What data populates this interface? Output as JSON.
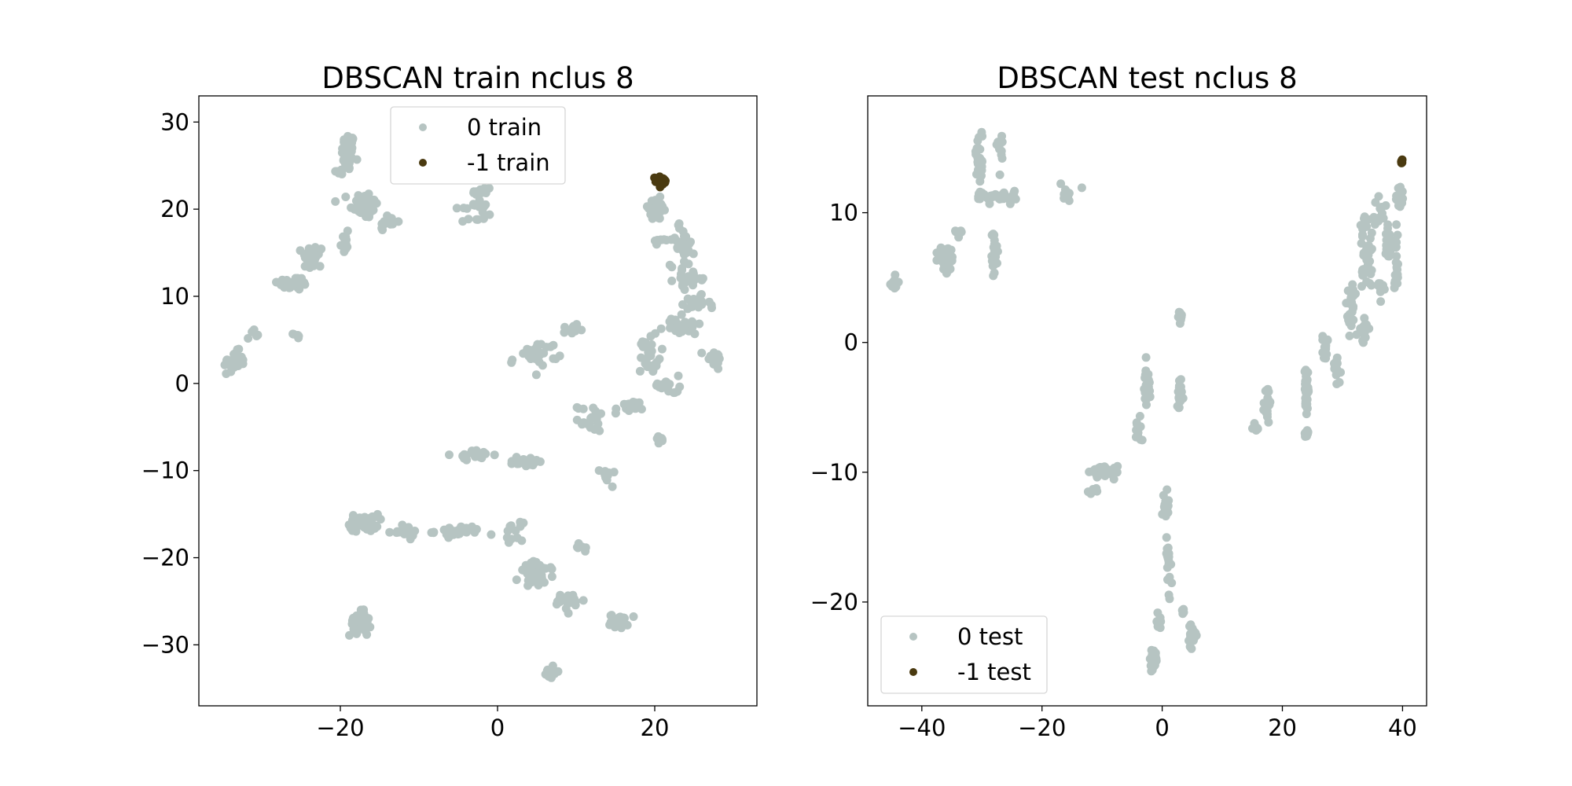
{
  "chart_data": [
    {
      "type": "scatter",
      "title": "DBSCAN train nclus 8",
      "xlabel": "",
      "ylabel": "",
      "xlim": [
        -38,
        33
      ],
      "ylim": [
        -37,
        33
      ],
      "xticks": [
        -20,
        0,
        20
      ],
      "yticks": [
        30,
        20,
        10,
        0,
        -10,
        -20,
        -30
      ],
      "grid": false,
      "legend_position": "upper-center",
      "series": [
        {
          "name": "0 train",
          "color": "#b6c4c2",
          "clusters": [
            {
              "cx": -19,
              "cy": 26.5,
              "sx": 0.8,
              "sy": 2.2,
              "n": 60
            },
            {
              "cx": -17,
              "cy": 20.5,
              "sx": 1.8,
              "sy": 1.6,
              "n": 45
            },
            {
              "cx": -14,
              "cy": 18.5,
              "sx": 1.2,
              "sy": 1.0,
              "n": 12
            },
            {
              "cx": -19.5,
              "cy": 16,
              "sx": 0.6,
              "sy": 2.2,
              "n": 12
            },
            {
              "cx": -20,
              "cy": 24.3,
              "sx": 0.8,
              "sy": 0.4,
              "n": 10
            },
            {
              "cx": -26,
              "cy": 11.5,
              "sx": 2.0,
              "sy": 0.8,
              "n": 30
            },
            {
              "cx": -23.5,
              "cy": 14.5,
              "sx": 1.3,
              "sy": 1.5,
              "n": 30
            },
            {
              "cx": -33.5,
              "cy": 2.5,
              "sx": 1.3,
              "sy": 1.2,
              "n": 40
            },
            {
              "cx": -31,
              "cy": 5.5,
              "sx": 0.6,
              "sy": 0.8,
              "n": 5
            },
            {
              "cx": -25.5,
              "cy": 5.5,
              "sx": 0.5,
              "sy": 0.3,
              "n": 5
            },
            {
              "cx": -4,
              "cy": 19.5,
              "sx": 2.5,
              "sy": 1.3,
              "n": 12
            },
            {
              "cx": -2,
              "cy": 22,
              "sx": 1.2,
              "sy": 0.8,
              "n": 18
            },
            {
              "cx": -2,
              "cy": 20.5,
              "sx": 1.0,
              "sy": 0.3,
              "n": 8
            },
            {
              "cx": -3,
              "cy": -8.2,
              "sx": 2.5,
              "sy": 0.5,
              "n": 20
            },
            {
              "cx": 3.5,
              "cy": -9,
              "sx": 2.5,
              "sy": 0.6,
              "n": 25
            },
            {
              "cx": -17,
              "cy": -16,
              "sx": 1.8,
              "sy": 1.0,
              "n": 45
            },
            {
              "cx": -12,
              "cy": -17,
              "sx": 2.0,
              "sy": 0.6,
              "n": 20
            },
            {
              "cx": -5,
              "cy": -17,
              "sx": 3.0,
              "sy": 0.6,
              "n": 35
            },
            {
              "cx": 2,
              "cy": -17,
              "sx": 1.2,
              "sy": 1.0,
              "n": 12
            },
            {
              "cx": 5,
              "cy": -22,
              "sx": 2.2,
              "sy": 1.5,
              "n": 45
            },
            {
              "cx": 9,
              "cy": -25,
              "sx": 2.0,
              "sy": 1.0,
              "n": 25
            },
            {
              "cx": 15.5,
              "cy": -27.3,
              "sx": 1.2,
              "sy": 0.8,
              "n": 35
            },
            {
              "cx": 10.5,
              "cy": -19,
              "sx": 0.7,
              "sy": 0.6,
              "n": 6
            },
            {
              "cx": -17.5,
              "cy": -27.5,
              "sx": 1.3,
              "sy": 1.5,
              "n": 30
            },
            {
              "cx": 6.8,
              "cy": -33,
              "sx": 0.6,
              "sy": 0.8,
              "n": 20
            },
            {
              "cx": 5.5,
              "cy": 3.5,
              "sx": 2.2,
              "sy": 1.3,
              "n": 28
            },
            {
              "cx": 9.5,
              "cy": 6.2,
              "sx": 0.8,
              "sy": 0.8,
              "n": 12
            },
            {
              "cx": 12,
              "cy": -4,
              "sx": 1.8,
              "sy": 1.5,
              "n": 18
            },
            {
              "cx": 16.5,
              "cy": -3,
              "sx": 1.5,
              "sy": 1.0,
              "n": 14
            },
            {
              "cx": 20.5,
              "cy": -6.5,
              "sx": 0.7,
              "sy": 0.6,
              "n": 12
            },
            {
              "cx": 14,
              "cy": -10.5,
              "sx": 0.9,
              "sy": 0.9,
              "n": 12
            },
            {
              "cx": 20,
              "cy": 20,
              "sx": 1.8,
              "sy": 1.3,
              "n": 25
            },
            {
              "cx": 23.5,
              "cy": 16,
              "sx": 1.5,
              "sy": 2.5,
              "n": 30
            },
            {
              "cx": 24.5,
              "cy": 12,
              "sx": 2.0,
              "sy": 1.0,
              "n": 25
            },
            {
              "cx": 25,
              "cy": 9,
              "sx": 2.0,
              "sy": 1.0,
              "n": 22
            },
            {
              "cx": 23.5,
              "cy": 6.5,
              "sx": 2.5,
              "sy": 1.0,
              "n": 25
            },
            {
              "cx": 27.5,
              "cy": 3,
              "sx": 1.2,
              "sy": 1.0,
              "n": 25
            },
            {
              "cx": 19.5,
              "cy": 3,
              "sx": 1.3,
              "sy": 3.0,
              "n": 30
            },
            {
              "cx": 21,
              "cy": 0,
              "sx": 1.0,
              "sy": 1.0,
              "n": 10
            },
            {
              "cx": 22.5,
              "cy": -0.5,
              "sx": 0.6,
              "sy": 0.8,
              "n": 6
            },
            {
              "cx": 21,
              "cy": 16.5,
              "sx": 1.2,
              "sy": 1.0,
              "n": 8
            },
            {
              "cx": 1.8,
              "cy": 2.5,
              "sx": 0.3,
              "sy": 0.3,
              "n": 3
            }
          ]
        },
        {
          "name": "-1 train",
          "color": "#4a3a10",
          "clusters": [
            {
              "cx": 21,
              "cy": 23.2,
              "sx": 0.9,
              "sy": 0.6,
              "n": 14
            }
          ]
        }
      ]
    },
    {
      "type": "scatter",
      "title": "DBSCAN test nclus 8",
      "xlabel": "",
      "ylabel": "",
      "xlim": [
        -49,
        44
      ],
      "ylim": [
        -28,
        19
      ],
      "xticks": [
        -40,
        -20,
        0,
        20,
        40
      ],
      "yticks": [
        10,
        0,
        -10,
        -20
      ],
      "grid": false,
      "legend_position": "lower-left",
      "series": [
        {
          "name": "0 test",
          "color": "#b6c4c2",
          "clusters": [
            {
              "cx": -44.5,
              "cy": 4.5,
              "sx": 0.6,
              "sy": 0.4,
              "n": 25
            },
            {
              "cx": -36,
              "cy": 6.5,
              "sx": 1.2,
              "sy": 1.0,
              "n": 45
            },
            {
              "cx": -34,
              "cy": 8.5,
              "sx": 0.6,
              "sy": 0.5,
              "n": 8
            },
            {
              "cx": -30.5,
              "cy": 14.5,
              "sx": 0.6,
              "sy": 2.0,
              "n": 25
            },
            {
              "cx": -30,
              "cy": 11.3,
              "sx": 0.8,
              "sy": 0.4,
              "n": 8
            },
            {
              "cx": -27,
              "cy": 14.7,
              "sx": 0.6,
              "sy": 1.2,
              "n": 12
            },
            {
              "cx": -28,
              "cy": 11,
              "sx": 2.5,
              "sy": 0.5,
              "n": 18
            },
            {
              "cx": -25,
              "cy": 11.3,
              "sx": 0.8,
              "sy": 0.5,
              "n": 6
            },
            {
              "cx": -28,
              "cy": 7,
              "sx": 0.5,
              "sy": 1.8,
              "n": 25
            },
            {
              "cx": -16,
              "cy": 11.5,
              "sx": 1.3,
              "sy": 0.6,
              "n": 15
            },
            {
              "cx": 3,
              "cy": 2,
              "sx": 0.3,
              "sy": 0.4,
              "n": 18
            },
            {
              "cx": -2.5,
              "cy": -3.5,
              "sx": 0.5,
              "sy": 1.5,
              "n": 28
            },
            {
              "cx": -4,
              "cy": -6.5,
              "sx": 0.6,
              "sy": 1.5,
              "n": 10
            },
            {
              "cx": 3,
              "cy": -4,
              "sx": 0.4,
              "sy": 1.2,
              "n": 25
            },
            {
              "cx": -10,
              "cy": -10,
              "sx": 2.5,
              "sy": 0.5,
              "n": 35
            },
            {
              "cx": -12,
              "cy": -11.5,
              "sx": 1.5,
              "sy": 0.3,
              "n": 8
            },
            {
              "cx": 0.5,
              "cy": -12.5,
              "sx": 0.8,
              "sy": 1.0,
              "n": 15
            },
            {
              "cx": 1,
              "cy": -17,
              "sx": 0.4,
              "sy": 2.5,
              "n": 22
            },
            {
              "cx": -0.5,
              "cy": -21.5,
              "sx": 0.5,
              "sy": 1.0,
              "n": 10
            },
            {
              "cx": -1.5,
              "cy": -24.5,
              "sx": 0.6,
              "sy": 0.8,
              "n": 35
            },
            {
              "cx": 5,
              "cy": -22.5,
              "sx": 0.6,
              "sy": 0.8,
              "n": 25
            },
            {
              "cx": 3.5,
              "cy": -20.5,
              "sx": 0.4,
              "sy": 0.5,
              "n": 5
            },
            {
              "cx": 17.5,
              "cy": -5,
              "sx": 0.5,
              "sy": 1.5,
              "n": 18
            },
            {
              "cx": 15.5,
              "cy": -6.5,
              "sx": 0.8,
              "sy": 0.5,
              "n": 8
            },
            {
              "cx": 24,
              "cy": -3.5,
              "sx": 0.4,
              "sy": 2.5,
              "n": 35
            },
            {
              "cx": 24,
              "cy": -7,
              "sx": 0.6,
              "sy": 0.3,
              "n": 10
            },
            {
              "cx": 27,
              "cy": -0.5,
              "sx": 0.8,
              "sy": 1.5,
              "n": 15
            },
            {
              "cx": 29,
              "cy": -2,
              "sx": 0.8,
              "sy": 1.2,
              "n": 12
            },
            {
              "cx": 31.5,
              "cy": 2.5,
              "sx": 0.8,
              "sy": 2.0,
              "n": 25
            },
            {
              "cx": 33.5,
              "cy": 1,
              "sx": 0.8,
              "sy": 1.0,
              "n": 15
            },
            {
              "cx": 34,
              "cy": 6.5,
              "sx": 1.0,
              "sy": 2.5,
              "n": 35
            },
            {
              "cx": 36.5,
              "cy": 4,
              "sx": 0.6,
              "sy": 1.2,
              "n": 12
            },
            {
              "cx": 37.5,
              "cy": 7.5,
              "sx": 0.8,
              "sy": 1.5,
              "n": 20
            },
            {
              "cx": 39,
              "cy": 6,
              "sx": 0.5,
              "sy": 2.5,
              "n": 20
            },
            {
              "cx": 39.5,
              "cy": 11,
              "sx": 0.8,
              "sy": 1.2,
              "n": 18
            },
            {
              "cx": 36,
              "cy": 10,
              "sx": 1.5,
              "sy": 1.0,
              "n": 12
            },
            {
              "cx": 33.5,
              "cy": 9,
              "sx": 0.8,
              "sy": 1.0,
              "n": 10
            }
          ]
        },
        {
          "name": "-1 test",
          "color": "#4a3a10",
          "clusters": [
            {
              "cx": 39.8,
              "cy": 13.9,
              "sx": 0.4,
              "sy": 0.3,
              "n": 6
            }
          ]
        }
      ]
    }
  ]
}
